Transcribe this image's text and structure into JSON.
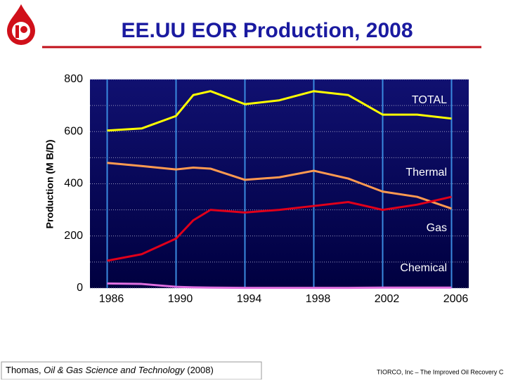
{
  "chart_data": {
    "type": "line",
    "title": "EE.UU EOR Production, 2008",
    "y_label": "Production (M B/D)",
    "x": [
      1986,
      1988,
      1990,
      1991,
      1992,
      1994,
      1996,
      1998,
      2000,
      2002,
      2004,
      2006
    ],
    "series": [
      {
        "name": "TOTAL",
        "color": "#ffff00",
        "values": [
          604,
          612,
          660,
          740,
          755,
          705,
          720,
          755,
          740,
          665,
          665,
          650
        ]
      },
      {
        "name": "Thermal",
        "color": "#ff9a50",
        "values": [
          480,
          468,
          455,
          462,
          458,
          415,
          425,
          450,
          420,
          370,
          350,
          305
        ]
      },
      {
        "name": "Gas",
        "color": "#e0001a",
        "values": [
          105,
          130,
          190,
          260,
          300,
          290,
          300,
          315,
          330,
          300,
          320,
          350
        ]
      },
      {
        "name": "Chemical",
        "color": "#e070e0",
        "values": [
          18,
          16,
          5,
          3,
          2,
          1,
          1,
          1,
          1,
          2,
          2,
          2
        ]
      }
    ],
    "xlim": [
      1985,
      2007
    ],
    "xticks": [
      1986,
      1990,
      1994,
      1998,
      2002,
      2006
    ],
    "ylim": [
      0,
      800
    ],
    "yticks": [
      0,
      200,
      400,
      600,
      800
    ],
    "y_minor_grid": [
      100,
      300,
      500,
      700
    ],
    "grid": true
  },
  "footer": {
    "author": "Thomas,",
    "journal": "Oil & Gas Science and Technology",
    "year": "(2008)",
    "company": "TIORCO, Inc – The Improved Oil Recovery C"
  }
}
